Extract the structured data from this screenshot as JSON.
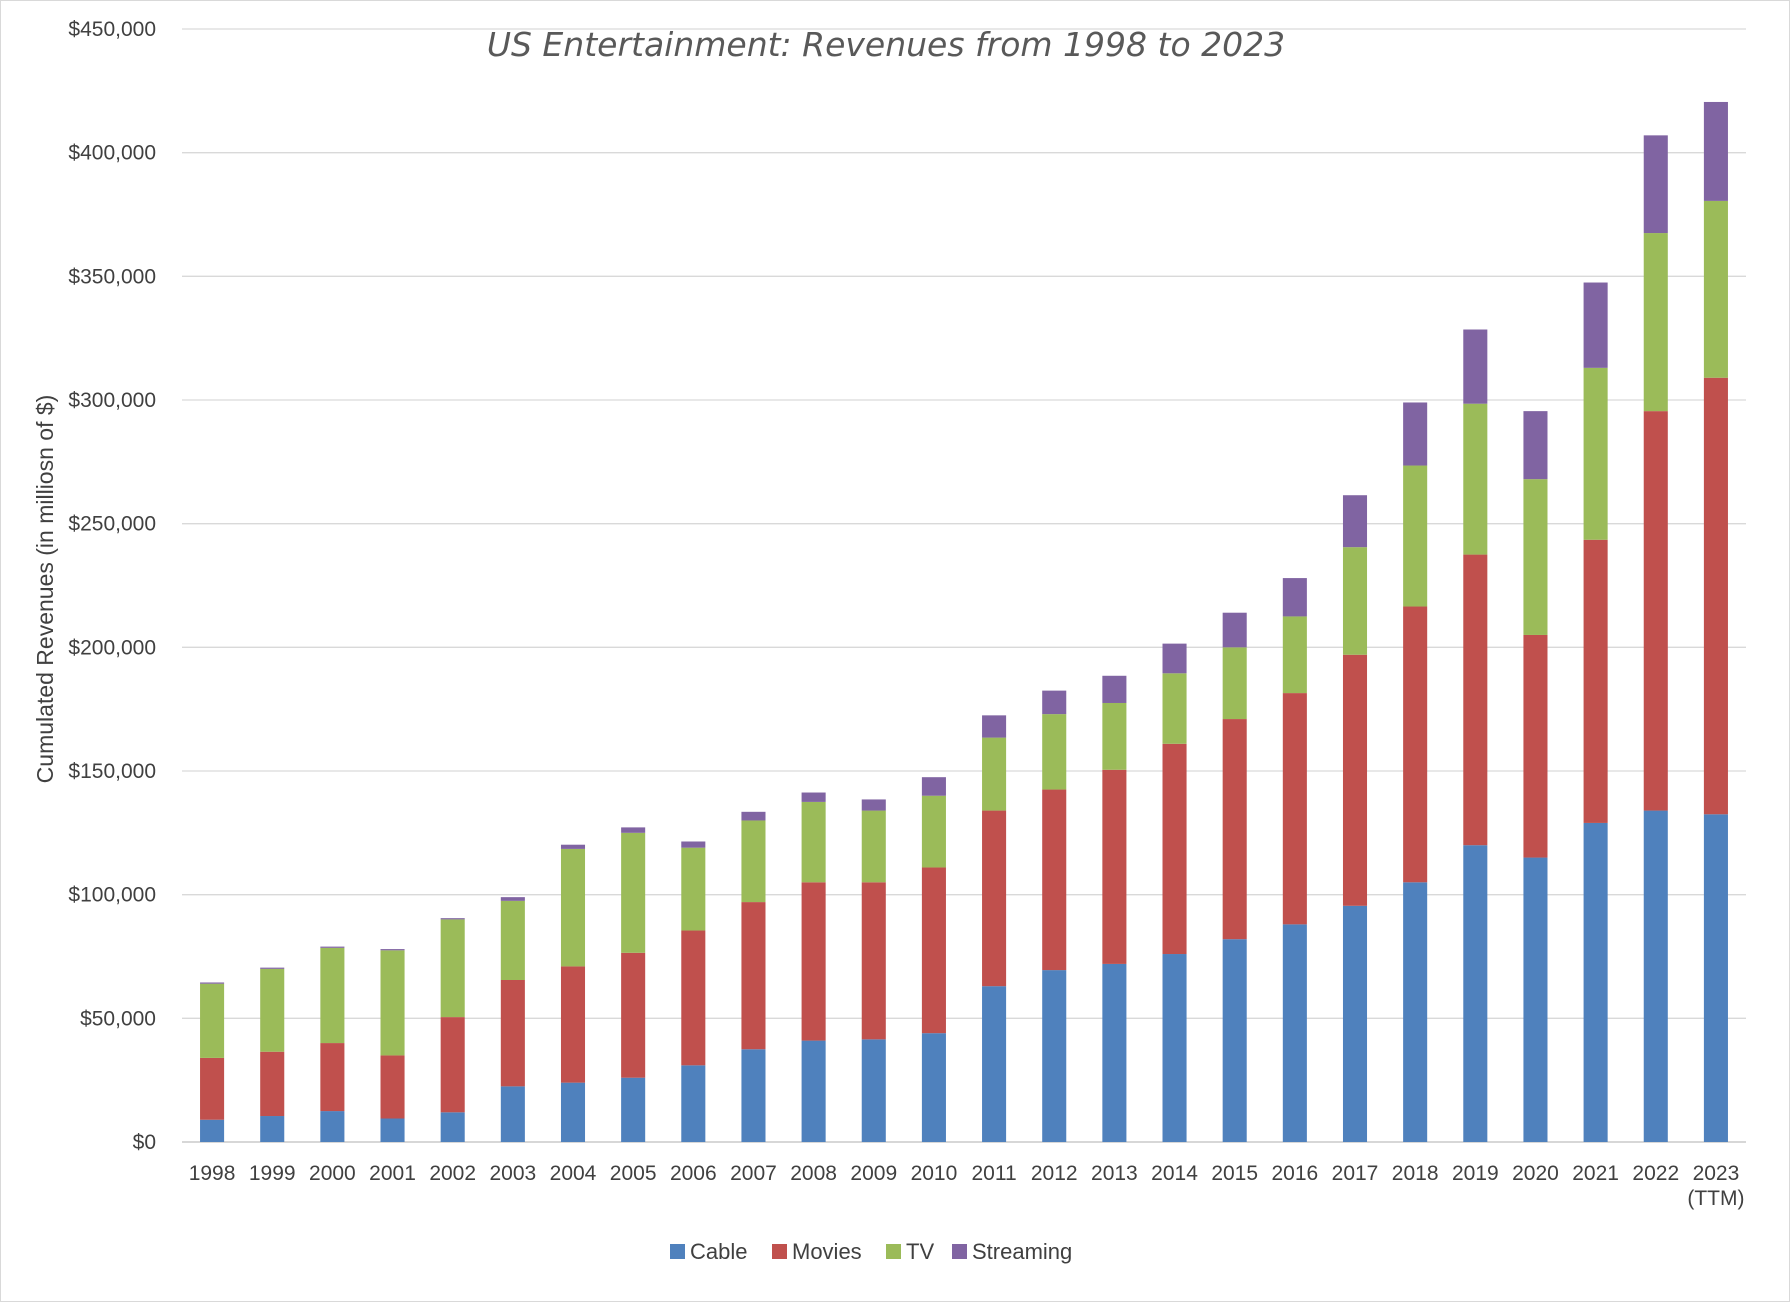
{
  "chart_data": {
    "type": "bar",
    "stacked": true,
    "title": "US Entertainment: Revenues from 1998 to 2023",
    "xlabel": "",
    "ylabel": "Cumulated Revenues (in milliosn of $)",
    "ylim": [
      0,
      450000
    ],
    "yticks": [
      0,
      50000,
      100000,
      150000,
      200000,
      250000,
      300000,
      350000,
      400000,
      450000
    ],
    "ytick_labels": [
      "$0",
      "$50,000",
      "$100,000",
      "$150,000",
      "$200,000",
      "$250,000",
      "$300,000",
      "$350,000",
      "$400,000",
      "$450,000"
    ],
    "grid": true,
    "legend_position": "bottom",
    "categories": [
      "1998",
      "1999",
      "2000",
      "2001",
      "2002",
      "2003",
      "2004",
      "2005",
      "2006",
      "2007",
      "2008",
      "2009",
      "2010",
      "2011",
      "2012",
      "2013",
      "2014",
      "2015",
      "2016",
      "2017",
      "2018",
      "2019",
      "2020",
      "2021",
      "2022",
      "2023\n(TTM)"
    ],
    "series": [
      {
        "name": "Cable",
        "color": "#4f81bd",
        "values": [
          9000,
          10500,
          12500,
          9500,
          12000,
          22500,
          24000,
          26000,
          31000,
          37500,
          41000,
          41500,
          44000,
          63000,
          69500,
          72000,
          76000,
          82000,
          88000,
          95500,
          105000,
          120000,
          115000,
          129000,
          134000,
          132500
        ]
      },
      {
        "name": "Movies",
        "color": "#c0504d",
        "values": [
          25000,
          26000,
          27500,
          25500,
          38500,
          43000,
          47000,
          50500,
          54500,
          59500,
          64000,
          63500,
          67000,
          71000,
          73000,
          78500,
          85000,
          89000,
          93500,
          101500,
          111500,
          117500,
          90000,
          114500,
          161500,
          176500
        ]
      },
      {
        "name": "TV",
        "color": "#9bbb59",
        "values": [
          30000,
          33500,
          38500,
          42500,
          39500,
          32000,
          47500,
          48500,
          33500,
          33000,
          32500,
          29000,
          29000,
          29500,
          30500,
          27000,
          28500,
          29000,
          31000,
          43500,
          57000,
          61000,
          63000,
          69500,
          72000,
          71500
        ]
      },
      {
        "name": "Streaming",
        "color": "#8064a2",
        "values": [
          500,
          500,
          500,
          500,
          500,
          1500,
          1700,
          2200,
          2500,
          3500,
          3800,
          4500,
          7500,
          9000,
          9500,
          11000,
          12000,
          14000,
          15500,
          21000,
          25500,
          30000,
          27500,
          34500,
          39500,
          40000
        ]
      }
    ]
  }
}
